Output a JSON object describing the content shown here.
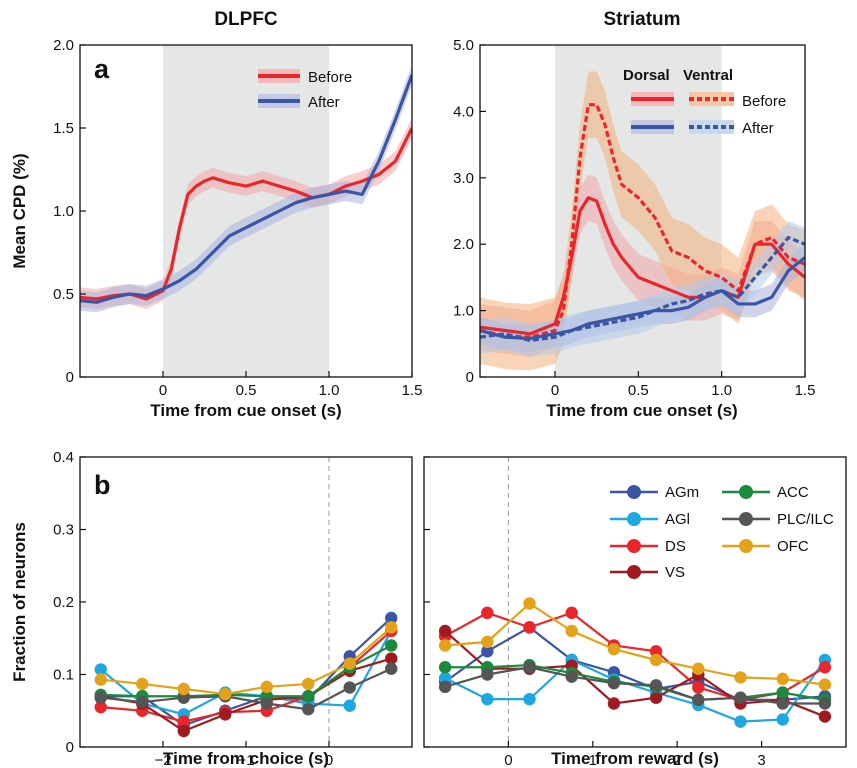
{
  "figure": {
    "panel_labels": [
      "a",
      "b"
    ],
    "top_left_title": "DLPFC",
    "top_right_title": "Striatum",
    "top_ylabel": "Mean CPD (%)",
    "bottom_ylabel": "Fraction of neurons"
  },
  "chart_data": [
    {
      "id": "dlpfc",
      "type": "line",
      "title": "DLPFC",
      "xlabel": "Time from cue onset (s)",
      "ylabel": "Mean CPD (%)",
      "xlim": [
        -0.5,
        1.5
      ],
      "ylim": [
        0,
        2.0
      ],
      "xticks": [
        0,
        0.5,
        1.0,
        1.5
      ],
      "xtick_labels": [
        "0",
        "0.5",
        "1.0",
        "1.5"
      ],
      "yticks": [
        0,
        0.5,
        1.0,
        1.5,
        2.0
      ],
      "ytick_labels": [
        "0",
        "0.5",
        "1.0",
        "1.5",
        "2.0"
      ],
      "shaded_window": [
        0,
        1.0
      ],
      "legend_position": "top-right",
      "legend": [
        "Before",
        "After"
      ],
      "series": [
        {
          "name": "Before",
          "color": "#e8262b",
          "band": 0.06,
          "x": [
            -0.5,
            -0.4,
            -0.3,
            -0.2,
            -0.1,
            0,
            0.05,
            0.1,
            0.15,
            0.2,
            0.25,
            0.3,
            0.4,
            0.5,
            0.6,
            0.7,
            0.8,
            0.9,
            1.0,
            1.1,
            1.2,
            1.3,
            1.4,
            1.5
          ],
          "y": [
            0.48,
            0.47,
            0.49,
            0.5,
            0.47,
            0.52,
            0.65,
            0.9,
            1.1,
            1.15,
            1.18,
            1.2,
            1.17,
            1.15,
            1.18,
            1.15,
            1.12,
            1.08,
            1.1,
            1.15,
            1.18,
            1.22,
            1.3,
            1.5
          ]
        },
        {
          "name": "After",
          "color": "#3a55a4",
          "band": 0.06,
          "x": [
            -0.5,
            -0.4,
            -0.3,
            -0.2,
            -0.1,
            0,
            0.1,
            0.2,
            0.3,
            0.4,
            0.5,
            0.6,
            0.7,
            0.8,
            0.9,
            1.0,
            1.1,
            1.2,
            1.3,
            1.4,
            1.5
          ],
          "y": [
            0.46,
            0.45,
            0.48,
            0.5,
            0.49,
            0.53,
            0.58,
            0.65,
            0.75,
            0.85,
            0.9,
            0.95,
            1.0,
            1.05,
            1.08,
            1.1,
            1.12,
            1.1,
            1.3,
            1.55,
            1.82
          ]
        }
      ]
    },
    {
      "id": "striatum",
      "type": "line",
      "title": "Striatum",
      "xlabel": "Time from cue onset (s)",
      "xlim": [
        -0.45,
        1.5
      ],
      "ylim": [
        0,
        5.0
      ],
      "xticks": [
        0,
        0.5,
        1.0,
        1.5
      ],
      "xtick_labels": [
        "0",
        "0.5",
        "1.0",
        "1.5"
      ],
      "yticks": [
        0,
        1.0,
        2.0,
        3.0,
        4.0,
        5.0
      ],
      "ytick_labels": [
        "0",
        "1.0",
        "2.0",
        "3.0",
        "4.0",
        "5.0"
      ],
      "shaded_window": [
        0,
        1.0
      ],
      "legend_position": "top-right",
      "legend_headers": [
        "Dorsal",
        "Ventral"
      ],
      "legend": [
        "Before",
        "After"
      ],
      "series": [
        {
          "name": "Dorsal Before",
          "color": "#e8262b",
          "dashed": false,
          "band": 0.35,
          "x": [
            -0.45,
            -0.3,
            -0.15,
            0,
            0.05,
            0.1,
            0.15,
            0.2,
            0.25,
            0.3,
            0.35,
            0.4,
            0.5,
            0.6,
            0.7,
            0.8,
            0.9,
            1.0,
            1.1,
            1.2,
            1.3,
            1.4,
            1.5
          ],
          "y": [
            0.75,
            0.7,
            0.65,
            0.8,
            1.2,
            1.8,
            2.5,
            2.7,
            2.65,
            2.3,
            2.0,
            1.8,
            1.5,
            1.4,
            1.3,
            1.2,
            1.2,
            1.3,
            1.2,
            2.0,
            2.0,
            1.7,
            1.5
          ]
        },
        {
          "name": "Ventral Before",
          "color": "#e8262b",
          "dashed": true,
          "band": 0.5,
          "x": [
            -0.45,
            -0.3,
            -0.15,
            0,
            0.05,
            0.1,
            0.15,
            0.2,
            0.25,
            0.3,
            0.35,
            0.4,
            0.5,
            0.6,
            0.7,
            0.8,
            0.9,
            1.0,
            1.1,
            1.2,
            1.3,
            1.4,
            1.5
          ],
          "y": [
            0.7,
            0.62,
            0.6,
            0.7,
            1.0,
            2.0,
            3.3,
            4.1,
            4.1,
            3.8,
            3.3,
            2.9,
            2.7,
            2.4,
            1.9,
            1.8,
            1.6,
            1.5,
            1.3,
            2.0,
            2.1,
            1.8,
            1.7
          ]
        },
        {
          "name": "Dorsal After",
          "color": "#3a55a4",
          "dashed": false,
          "band": 0.2,
          "x": [
            -0.45,
            -0.3,
            -0.15,
            0,
            0.1,
            0.2,
            0.3,
            0.4,
            0.5,
            0.6,
            0.7,
            0.8,
            0.9,
            1.0,
            1.1,
            1.2,
            1.3,
            1.4,
            1.5
          ],
          "y": [
            0.7,
            0.6,
            0.58,
            0.65,
            0.7,
            0.8,
            0.85,
            0.9,
            0.95,
            1.0,
            1.0,
            1.05,
            1.2,
            1.3,
            1.1,
            1.1,
            1.2,
            1.6,
            1.8
          ]
        },
        {
          "name": "Ventral After",
          "color": "#3a55a4",
          "dashed": true,
          "band": 0.25,
          "x": [
            -0.45,
            -0.3,
            -0.15,
            0,
            0.1,
            0.2,
            0.3,
            0.4,
            0.5,
            0.6,
            0.7,
            0.8,
            0.9,
            1.0,
            1.1,
            1.2,
            1.3,
            1.4,
            1.5
          ],
          "y": [
            0.6,
            0.65,
            0.55,
            0.6,
            0.7,
            0.75,
            0.8,
            0.85,
            0.9,
            1.0,
            1.1,
            1.15,
            1.25,
            1.3,
            1.2,
            1.5,
            1.8,
            2.1,
            2.0
          ]
        }
      ]
    },
    {
      "id": "choice",
      "type": "line",
      "xlabel": "Time from choice (s)",
      "ylabel": "Fraction of neurons",
      "xlim": [
        -3.0,
        1.0
      ],
      "ylim": [
        0,
        0.4
      ],
      "xticks": [
        -2,
        -1,
        0
      ],
      "xtick_labels": [
        "−2",
        "−1",
        "0"
      ],
      "yticks": [
        0,
        0.1,
        0.2,
        0.3,
        0.4
      ],
      "ytick_labels": [
        "0",
        "0.1",
        "0.2",
        "0.3",
        "0.4"
      ],
      "vline": 0,
      "x": [
        -2.75,
        -2.25,
        -1.75,
        -1.25,
        -0.75,
        -0.25,
        0.25,
        0.75
      ],
      "series": [
        {
          "name": "AGm",
          "color": "#3a55a4",
          "values": [
            0.07,
            0.07,
            0.03,
            0.05,
            0.07,
            0.065,
            0.125,
            0.178
          ]
        },
        {
          "name": "AGl",
          "color": "#1ea8e0",
          "values": [
            0.107,
            0.06,
            0.045,
            0.075,
            0.07,
            0.06,
            0.057,
            0.16
          ]
        },
        {
          "name": "DS",
          "color": "#e8262b",
          "values": [
            0.055,
            0.05,
            0.035,
            0.048,
            0.05,
            0.07,
            0.11,
            0.16
          ]
        },
        {
          "name": "VS",
          "color": "#9e1b20",
          "values": [
            0.07,
            0.06,
            0.022,
            0.045,
            0.065,
            0.07,
            0.105,
            0.122
          ]
        },
        {
          "name": "ACC",
          "color": "#1a8a3c",
          "values": [
            0.072,
            0.07,
            0.07,
            0.072,
            0.07,
            0.07,
            0.11,
            0.14
          ]
        },
        {
          "name": "PLC/ILC",
          "color": "#555555",
          "values": [
            0.068,
            0.062,
            0.068,
            0.07,
            0.06,
            0.052,
            0.082,
            0.108
          ]
        },
        {
          "name": "OFC",
          "color": "#e3a21a",
          "values": [
            0.093,
            0.087,
            0.08,
            0.073,
            0.083,
            0.087,
            0.115,
            0.165
          ]
        }
      ]
    },
    {
      "id": "reward",
      "type": "line",
      "xlabel": "Time from reward (s)",
      "xlim": [
        -1.0,
        4.0
      ],
      "ylim": [
        0,
        0.4
      ],
      "xticks": [
        0,
        1,
        2,
        3
      ],
      "xtick_labels": [
        "0",
        "1",
        "2",
        "3"
      ],
      "yticks": [
        0,
        0.1,
        0.2,
        0.3,
        0.4
      ],
      "vline": 0,
      "legend_position": "top-right",
      "x": [
        -0.75,
        -0.25,
        0.25,
        0.75,
        1.25,
        1.75,
        2.25,
        2.75,
        3.25,
        3.75
      ],
      "series": [
        {
          "name": "AGm",
          "color": "#3a55a4",
          "values": [
            0.09,
            0.132,
            0.165,
            0.12,
            0.103,
            0.08,
            0.09,
            0.065,
            0.065,
            0.07
          ]
        },
        {
          "name": "AGl",
          "color": "#1ea8e0",
          "values": [
            0.095,
            0.066,
            0.066,
            0.12,
            0.093,
            0.075,
            0.058,
            0.035,
            0.038,
            0.12
          ]
        },
        {
          "name": "DS",
          "color": "#e8262b",
          "values": [
            0.153,
            0.185,
            0.165,
            0.185,
            0.14,
            0.132,
            0.082,
            0.065,
            0.075,
            0.11
          ]
        },
        {
          "name": "VS",
          "color": "#9e1b20",
          "values": [
            0.16,
            0.108,
            0.108,
            0.112,
            0.06,
            0.068,
            0.1,
            0.06,
            0.065,
            0.042
          ]
        },
        {
          "name": "ACC",
          "color": "#1a8a3c",
          "values": [
            0.11,
            0.11,
            0.113,
            0.102,
            0.09,
            0.083,
            0.065,
            0.068,
            0.075,
            0.065
          ]
        },
        {
          "name": "PLC/ILC",
          "color": "#555555",
          "values": [
            0.083,
            0.1,
            0.11,
            0.097,
            0.088,
            0.085,
            0.065,
            0.068,
            0.06,
            0.06
          ]
        },
        {
          "name": "OFC",
          "color": "#e3a21a",
          "values": [
            0.14,
            0.145,
            0.198,
            0.16,
            0.135,
            0.12,
            0.108,
            0.096,
            0.094,
            0.086
          ]
        }
      ]
    }
  ]
}
